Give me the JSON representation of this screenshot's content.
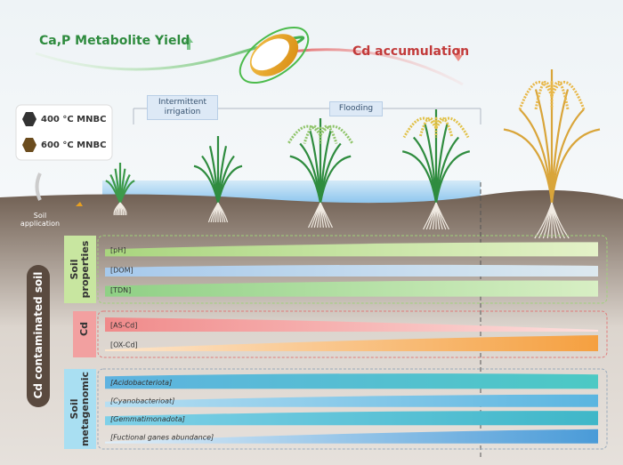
{
  "header": {
    "yield_label": "Ca,P Metabolite Yield",
    "cd_label": "Cd accumulation"
  },
  "stages": [
    "Intermittent irrigation",
    "Flooding"
  ],
  "legend": [
    "400 °C MNBC",
    "600 °C MNBC"
  ],
  "soil_application": "Soil application",
  "soil_label": "Cd contaminated soil",
  "groups": [
    {
      "title": "Soil properties",
      "bands": [
        "[pH]",
        "[DOM]",
        "[TDN]"
      ]
    },
    {
      "title": "Cd",
      "bands": [
        "[AS-Cd]",
        "[OX-Cd]"
      ]
    },
    {
      "title": "Soil metagenomic",
      "bands": [
        "[Acidobacteriota]",
        "[Cyanobacterioat]",
        "[Gemmatimonadota]",
        "[Fuctional ganes abundance]"
      ]
    }
  ]
}
